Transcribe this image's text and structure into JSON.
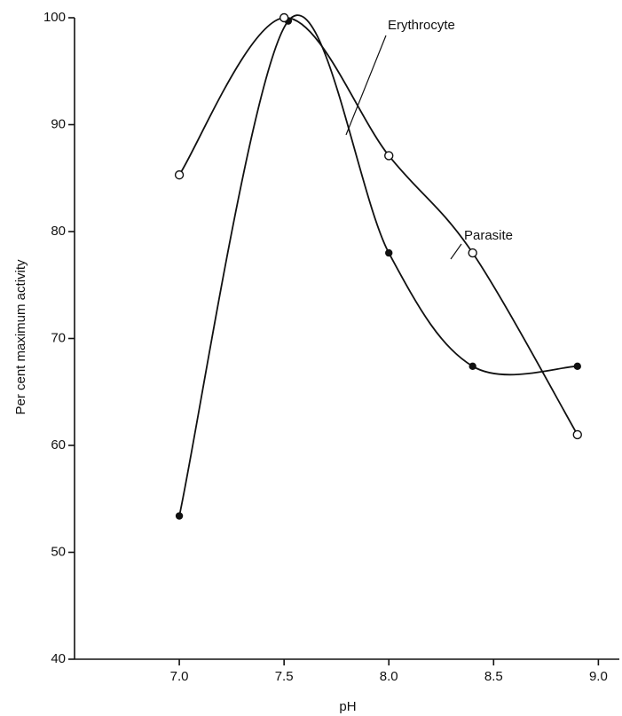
{
  "chart_data": {
    "type": "line",
    "x_label": "pH",
    "y_label": "Per cent maximum activity",
    "series": [
      {
        "name": "Erythrocyte",
        "color": "#111111",
        "marker": "filled",
        "x": [
          7.0,
          7.52,
          8.0,
          8.4,
          8.9
        ],
        "values": [
          53.4,
          99.7,
          78,
          67.4,
          67.4
        ]
      },
      {
        "name": "Parasite",
        "color": "#111111",
        "marker": "open",
        "x": [
          7.0,
          7.5,
          8.0,
          8.4,
          8.9
        ],
        "values": [
          85.3,
          100,
          87.1,
          78,
          61
        ]
      }
    ],
    "xlim": [
      6.5,
      9.1
    ],
    "xticks": [
      {
        "value": 7.0,
        "label": "7.0"
      },
      {
        "value": 7.5,
        "label": "7.5"
      },
      {
        "value": 8.0,
        "label": "8.0"
      },
      {
        "value": 8.5,
        "label": "8.5"
      },
      {
        "value": 9.0,
        "label": "9.0"
      }
    ],
    "ylim": [
      40,
      100
    ],
    "yticks": [
      40,
      50,
      60,
      70,
      80,
      90,
      100
    ],
    "grid": false
  }
}
